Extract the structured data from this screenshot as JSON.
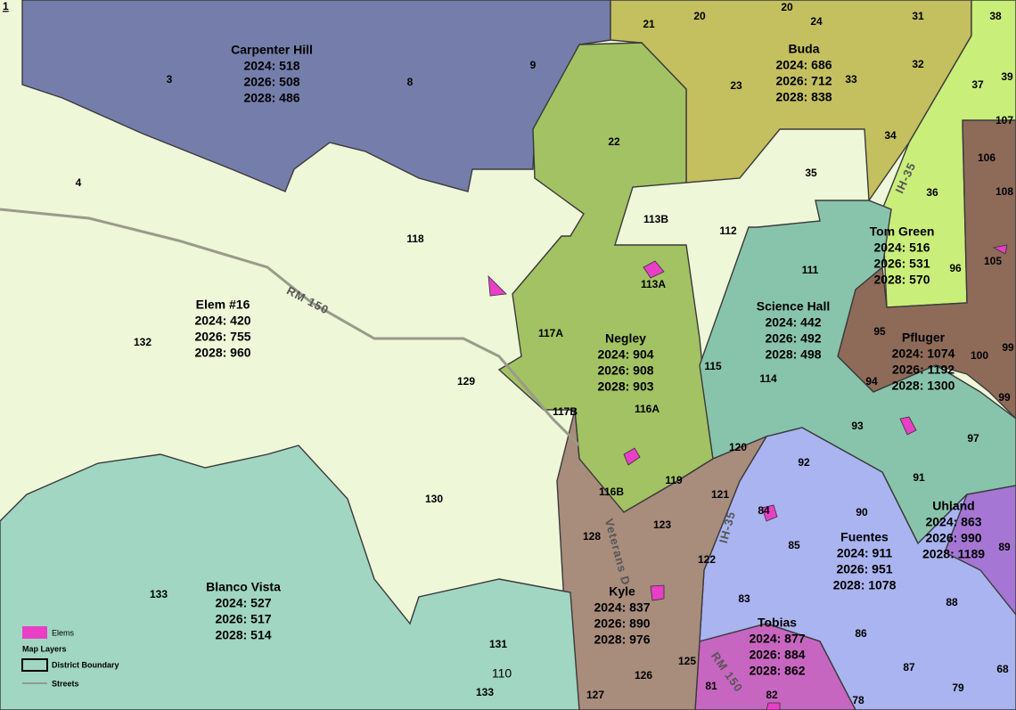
{
  "schools": [
    {
      "name": "Carpenter Hill",
      "lines": [
        "2024: 518",
        "2026: 508",
        "2028: 486"
      ]
    },
    {
      "name": "Buda",
      "lines": [
        "2024: 686",
        "2026: 712",
        "2028: 838"
      ]
    },
    {
      "name": "Elem #16",
      "lines": [
        "2024: 420",
        "2026: 755",
        "2028: 960"
      ]
    },
    {
      "name": "Negley",
      "lines": [
        "2024: 904",
        "2026: 908",
        "2028: 903"
      ]
    },
    {
      "name": "Tom Green",
      "lines": [
        "2024: 516",
        "2026: 531",
        "2028: 570"
      ]
    },
    {
      "name": "Science Hall",
      "lines": [
        "2024: 442",
        "2026: 492",
        "2028: 498"
      ]
    },
    {
      "name": "Pfluger",
      "lines": [
        "2024: 1074",
        "2026: 1192",
        "2028: 1300"
      ]
    },
    {
      "name": "Uhland",
      "lines": [
        "2024: 863",
        "2026: 990",
        "2028: 1189"
      ]
    },
    {
      "name": "Fuentes",
      "lines": [
        "2024: 911",
        "2026: 951",
        "2028: 1078"
      ]
    },
    {
      "name": "Blanco Vista",
      "lines": [
        "2024: 527",
        "2026: 517",
        "2028: 514"
      ]
    },
    {
      "name": "Kyle",
      "lines": [
        "2024: 837",
        "2026: 890",
        "2028: 976"
      ]
    },
    {
      "name": "Tobias",
      "lines": [
        "2024: 877",
        "2026: 884",
        "2028: 862"
      ]
    }
  ],
  "zones": [
    "3",
    "4",
    "8",
    "9",
    "21",
    "20",
    "20",
    "24",
    "31",
    "38",
    "32",
    "33",
    "37",
    "39",
    "107",
    "23",
    "22",
    "34",
    "106",
    "108",
    "35",
    "36",
    "113B",
    "112",
    "118",
    "105",
    "96",
    "111",
    "113A",
    "117A",
    "132",
    "95",
    "99",
    "100",
    "115",
    "114",
    "94",
    "129",
    "116A",
    "117B",
    "99",
    "93",
    "97",
    "120",
    "92",
    "91",
    "119",
    "116B",
    "121",
    "130",
    "84",
    "90",
    "123",
    "128",
    "85",
    "89",
    "122",
    "133",
    "83",
    "88",
    "86",
    "131",
    "87",
    "125",
    "68",
    "126",
    "81",
    "79",
    "133",
    "127",
    "82",
    "78"
  ],
  "plain_label": "110",
  "edge_label": "1",
  "roads": [
    "RM 150",
    "IH-35",
    "IH-35",
    "RM 150",
    "Veterans D"
  ],
  "legend": {
    "elems": "Elems",
    "layers_title": "Map Layers",
    "district_boundary": "District Boundary",
    "streets": "Streets"
  }
}
